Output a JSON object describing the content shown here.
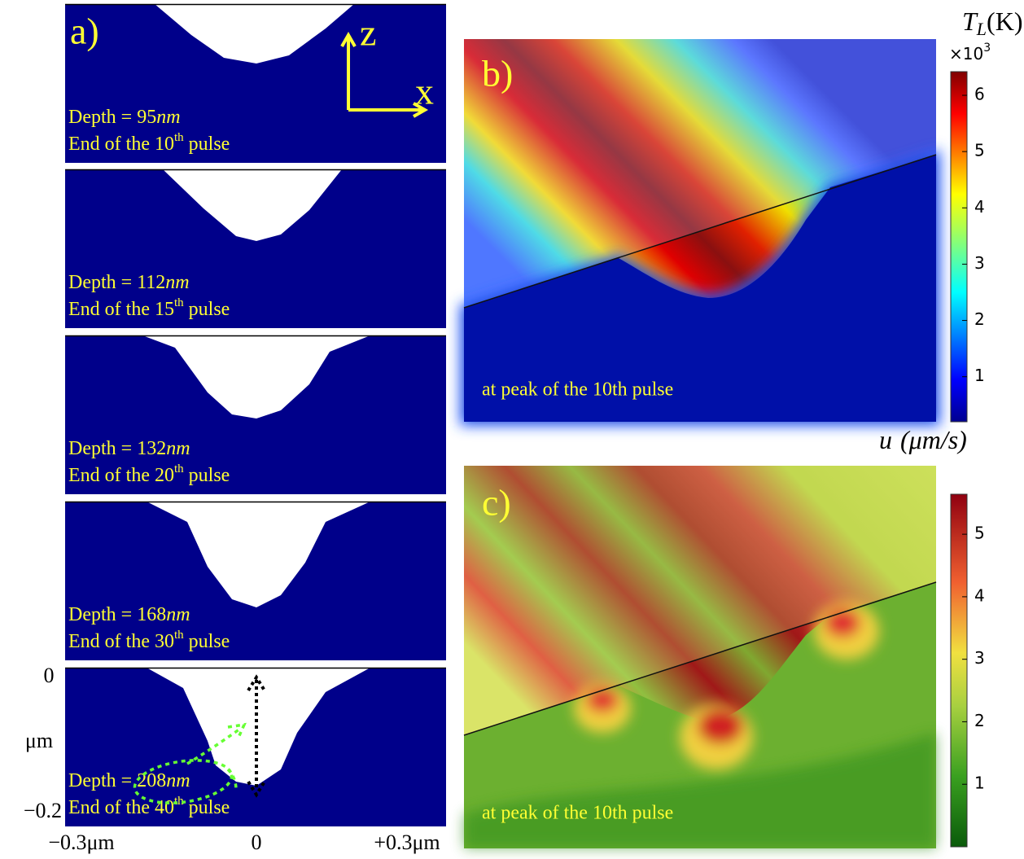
{
  "panel_a": {
    "label": "a)",
    "axis_z": "z",
    "axis_x": "x",
    "frames": [
      {
        "depth": "Depth = 95",
        "unit": "nm",
        "pulse": "End of the 10",
        "ordinal": "th",
        "tail": "pulse"
      },
      {
        "depth": "Depth = 112",
        "unit": "nm",
        "pulse": "End of the 15",
        "ordinal": "th",
        "tail": "pulse"
      },
      {
        "depth": "Depth = 132",
        "unit": "nm",
        "pulse": "End of the 20",
        "ordinal": "th",
        "tail": "pulse"
      },
      {
        "depth": "Depth = 168",
        "unit": "nm",
        "pulse": "End of the 30",
        "ordinal": "th",
        "tail": "pulse"
      },
      {
        "depth": "Depth = 208",
        "unit": "nm",
        "pulse": "End of the 40",
        "ordinal": "th",
        "tail": "pulse"
      }
    ],
    "z_top": "0",
    "z_unit": "μm",
    "z_bottom": "−0.2",
    "x_left": "−0.3μm",
    "x_mid": "0",
    "x_right": "+0.3μm"
  },
  "panel_b": {
    "label": "b)",
    "caption": "at peak of the 10th pulse",
    "colorbar": {
      "symbol": "T",
      "subscript": "L",
      "unit": "(K)",
      "multiplier": "×10",
      "exponent": "3",
      "lim": [
        0.2,
        6.42
      ],
      "ticks": [
        1,
        2,
        3,
        4,
        5,
        6
      ]
    }
  },
  "panel_c": {
    "label": "c)",
    "caption": "at peak of the 10th pulse",
    "colorbar": {
      "symbol": "u",
      "unit": "(μm/s)",
      "lim": [
        0,
        5.64
      ],
      "ticks": [
        1,
        2,
        3,
        4,
        5
      ]
    }
  }
}
